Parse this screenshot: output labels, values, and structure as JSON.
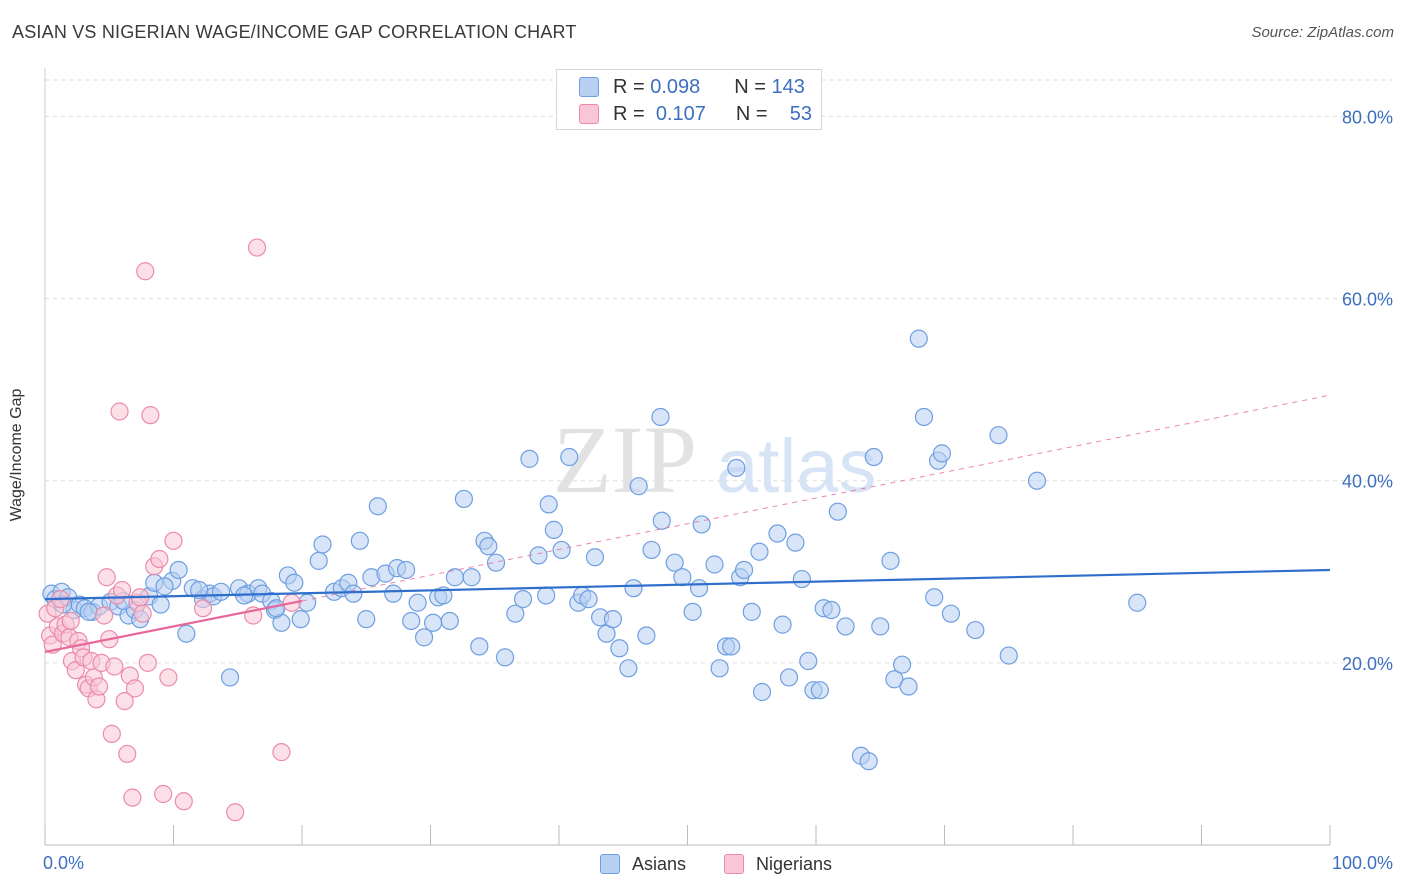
{
  "header": {
    "title": "ASIAN VS NIGERIAN WAGE/INCOME GAP CORRELATION CHART",
    "source": "Source: ZipAtlas.com"
  },
  "legend": {
    "rows": [
      {
        "r_label": "R =",
        "r_value": "0.098",
        "n_label": "N =",
        "n_value": "143"
      },
      {
        "r_label": "R =",
        "r_value": "0.107",
        "n_label": "N =",
        "n_value": "53"
      }
    ],
    "bottom": [
      {
        "label": "Asians"
      },
      {
        "label": "Nigerians"
      }
    ]
  },
  "watermark": {
    "zip": "ZIP",
    "atlas": "atlas"
  },
  "colors": {
    "asian_fill": "#b8d0f2",
    "asian_stroke": "#6f9fe0",
    "asian_line": "#2f6fcc",
    "nigerian_fill": "#f8c6d6",
    "nigerian_stroke": "#ec8bab",
    "nigerian_line": "#e8679a",
    "axis_text": "#3d6fc0",
    "grid": "#dddddd"
  },
  "chart_data": {
    "type": "scatter",
    "title": "ASIAN VS NIGERIAN WAGE/INCOME GAP CORRELATION CHART",
    "xlabel": "",
    "ylabel": "Wage/Income Gap",
    "xlim": [
      0,
      100
    ],
    "ylim": [
      0,
      84
    ],
    "x_tick_labels": [
      {
        "value": 0,
        "label": "0.0%"
      },
      {
        "value": 100,
        "label": "100.0%"
      }
    ],
    "y_tick_labels": [
      {
        "value": 20,
        "label": "20.0%"
      },
      {
        "value": 40,
        "label": "40.0%"
      },
      {
        "value": 60,
        "label": "60.0%"
      },
      {
        "value": 80,
        "label": "80.0%"
      }
    ],
    "x_minor_ticks": [
      0,
      10,
      20,
      30,
      40,
      50,
      60,
      70,
      80,
      90,
      100
    ],
    "grid": true,
    "series": [
      {
        "name": "Asians",
        "r": 0.098,
        "n": 143,
        "trend": {
          "x": [
            0,
            100
          ],
          "y": [
            27.0,
            30.2
          ]
        },
        "points": [
          [
            0.5,
            27.6
          ],
          [
            0.8,
            27.0
          ],
          [
            1.3,
            27.8
          ],
          [
            1.8,
            27.2
          ],
          [
            2.3,
            25.8
          ],
          [
            2.7,
            26.4
          ],
          [
            3.1,
            26.0
          ],
          [
            3.7,
            25.6
          ],
          [
            4.2,
            26.2
          ],
          [
            5.1,
            26.7
          ],
          [
            5.7,
            26.2
          ],
          [
            6.5,
            25.2
          ],
          [
            7.0,
            25.8
          ],
          [
            7.4,
            24.8
          ],
          [
            8.1,
            27.3
          ],
          [
            8.5,
            28.8
          ],
          [
            9.0,
            26.4
          ],
          [
            9.9,
            29.0
          ],
          [
            10.4,
            30.2
          ],
          [
            11.0,
            23.2
          ],
          [
            11.5,
            28.2
          ],
          [
            12.3,
            27.0
          ],
          [
            12.8,
            27.6
          ],
          [
            13.1,
            27.3
          ],
          [
            13.7,
            27.8
          ],
          [
            14.4,
            18.4
          ],
          [
            15.1,
            28.2
          ],
          [
            15.8,
            27.6
          ],
          [
            16.6,
            28.2
          ],
          [
            16.9,
            27.6
          ],
          [
            17.6,
            26.8
          ],
          [
            17.9,
            25.8
          ],
          [
            18.4,
            24.4
          ],
          [
            18.9,
            29.6
          ],
          [
            19.4,
            28.8
          ],
          [
            19.9,
            24.8
          ],
          [
            20.4,
            26.6
          ],
          [
            21.3,
            31.2
          ],
          [
            21.6,
            33.0
          ],
          [
            22.5,
            27.8
          ],
          [
            23.1,
            28.2
          ],
          [
            23.6,
            28.8
          ],
          [
            24.0,
            27.6
          ],
          [
            24.5,
            33.4
          ],
          [
            25.0,
            24.8
          ],
          [
            25.4,
            29.4
          ],
          [
            25.9,
            37.2
          ],
          [
            26.5,
            29.8
          ],
          [
            27.1,
            27.6
          ],
          [
            27.4,
            30.4
          ],
          [
            28.1,
            30.2
          ],
          [
            28.5,
            24.6
          ],
          [
            29.0,
            26.6
          ],
          [
            29.5,
            22.8
          ],
          [
            30.2,
            24.4
          ],
          [
            30.6,
            27.2
          ],
          [
            31.0,
            27.4
          ],
          [
            31.5,
            24.6
          ],
          [
            31.9,
            29.4
          ],
          [
            32.6,
            38.0
          ],
          [
            33.2,
            29.4
          ],
          [
            33.8,
            21.8
          ],
          [
            34.2,
            33.4
          ],
          [
            34.5,
            32.8
          ],
          [
            35.1,
            31.0
          ],
          [
            35.8,
            20.6
          ],
          [
            36.6,
            25.4
          ],
          [
            37.2,
            27.0
          ],
          [
            37.7,
            42.4
          ],
          [
            38.4,
            31.8
          ],
          [
            39.0,
            27.4
          ],
          [
            39.2,
            37.4
          ],
          [
            39.6,
            34.6
          ],
          [
            40.2,
            32.4
          ],
          [
            40.8,
            42.6
          ],
          [
            41.5,
            26.6
          ],
          [
            41.8,
            27.4
          ],
          [
            42.3,
            27.0
          ],
          [
            42.8,
            31.6
          ],
          [
            43.2,
            25.0
          ],
          [
            43.7,
            23.2
          ],
          [
            44.2,
            24.8
          ],
          [
            44.7,
            21.6
          ],
          [
            45.4,
            19.4
          ],
          [
            45.8,
            28.2
          ],
          [
            46.2,
            39.4
          ],
          [
            46.8,
            23.0
          ],
          [
            47.2,
            32.4
          ],
          [
            47.9,
            47.0
          ],
          [
            48.0,
            35.6
          ],
          [
            49.0,
            31.0
          ],
          [
            49.6,
            29.4
          ],
          [
            50.4,
            25.6
          ],
          [
            50.9,
            28.2
          ],
          [
            51.1,
            35.2
          ],
          [
            52.1,
            30.8
          ],
          [
            52.5,
            19.4
          ],
          [
            53.0,
            21.8
          ],
          [
            53.4,
            21.8
          ],
          [
            53.8,
            41.4
          ],
          [
            54.1,
            29.4
          ],
          [
            54.4,
            30.2
          ],
          [
            55.0,
            25.6
          ],
          [
            55.6,
            32.2
          ],
          [
            55.8,
            16.8
          ],
          [
            57.0,
            34.2
          ],
          [
            57.4,
            24.2
          ],
          [
            57.9,
            18.4
          ],
          [
            58.4,
            33.2
          ],
          [
            58.9,
            29.2
          ],
          [
            59.4,
            20.2
          ],
          [
            59.8,
            17.0
          ],
          [
            60.3,
            17.0
          ],
          [
            60.6,
            26.0
          ],
          [
            61.2,
            25.8
          ],
          [
            61.7,
            36.6
          ],
          [
            62.3,
            24.0
          ],
          [
            63.5,
            9.8
          ],
          [
            64.1,
            9.2
          ],
          [
            64.5,
            42.6
          ],
          [
            65.0,
            24.0
          ],
          [
            65.8,
            31.2
          ],
          [
            66.1,
            18.2
          ],
          [
            66.7,
            19.8
          ],
          [
            67.2,
            17.4
          ],
          [
            68.0,
            55.6
          ],
          [
            68.4,
            47.0
          ],
          [
            69.2,
            27.2
          ],
          [
            69.5,
            42.2
          ],
          [
            69.8,
            43.0
          ],
          [
            70.5,
            25.4
          ],
          [
            72.4,
            23.6
          ],
          [
            74.2,
            45.0
          ],
          [
            75.0,
            20.8
          ],
          [
            77.2,
            40.0
          ],
          [
            85.0,
            26.6
          ],
          [
            1.4,
            26.4
          ],
          [
            3.4,
            25.6
          ],
          [
            6.1,
            26.8
          ],
          [
            9.3,
            28.4
          ],
          [
            12.0,
            28.0
          ],
          [
            15.5,
            27.4
          ],
          [
            18.0,
            26.0
          ]
        ]
      },
      {
        "name": "Nigerians",
        "r": 0.107,
        "n": 53,
        "trend": {
          "x": [
            0,
            20
          ],
          "y": [
            21.2,
            26.8
          ]
        },
        "points": [
          [
            0.2,
            25.4
          ],
          [
            0.4,
            23.0
          ],
          [
            0.6,
            22.0
          ],
          [
            0.8,
            26.0
          ],
          [
            1.0,
            24.0
          ],
          [
            1.2,
            27.0
          ],
          [
            1.4,
            23.2
          ],
          [
            1.6,
            24.2
          ],
          [
            1.9,
            22.8
          ],
          [
            2.1,
            20.2
          ],
          [
            2.4,
            19.2
          ],
          [
            2.6,
            22.4
          ],
          [
            2.8,
            21.6
          ],
          [
            3.0,
            20.6
          ],
          [
            3.2,
            17.6
          ],
          [
            3.4,
            17.2
          ],
          [
            3.6,
            20.2
          ],
          [
            3.8,
            18.4
          ],
          [
            4.0,
            16.0
          ],
          [
            4.2,
            17.4
          ],
          [
            4.4,
            20.0
          ],
          [
            4.6,
            25.2
          ],
          [
            4.8,
            29.4
          ],
          [
            5.0,
            22.6
          ],
          [
            5.2,
            12.2
          ],
          [
            5.4,
            19.6
          ],
          [
            5.6,
            27.4
          ],
          [
            5.8,
            47.6
          ],
          [
            6.0,
            28.0
          ],
          [
            6.2,
            15.8
          ],
          [
            6.4,
            10.0
          ],
          [
            6.6,
            18.6
          ],
          [
            6.8,
            5.2
          ],
          [
            7.0,
            17.2
          ],
          [
            7.2,
            26.6
          ],
          [
            7.4,
            27.2
          ],
          [
            7.6,
            25.4
          ],
          [
            7.8,
            63.0
          ],
          [
            8.0,
            20.0
          ],
          [
            8.2,
            47.2
          ],
          [
            8.5,
            30.6
          ],
          [
            8.9,
            31.4
          ],
          [
            9.2,
            5.6
          ],
          [
            9.6,
            18.4
          ],
          [
            10.0,
            33.4
          ],
          [
            10.8,
            4.8
          ],
          [
            12.3,
            26.0
          ],
          [
            14.8,
            3.6
          ],
          [
            16.2,
            25.2
          ],
          [
            16.5,
            65.6
          ],
          [
            18.4,
            10.2
          ],
          [
            19.2,
            26.6
          ],
          [
            2.0,
            24.6
          ]
        ]
      }
    ],
    "extrapolation_dashed": {
      "x": [
        20,
        100
      ],
      "y": [
        26.8,
        49.4
      ]
    }
  }
}
